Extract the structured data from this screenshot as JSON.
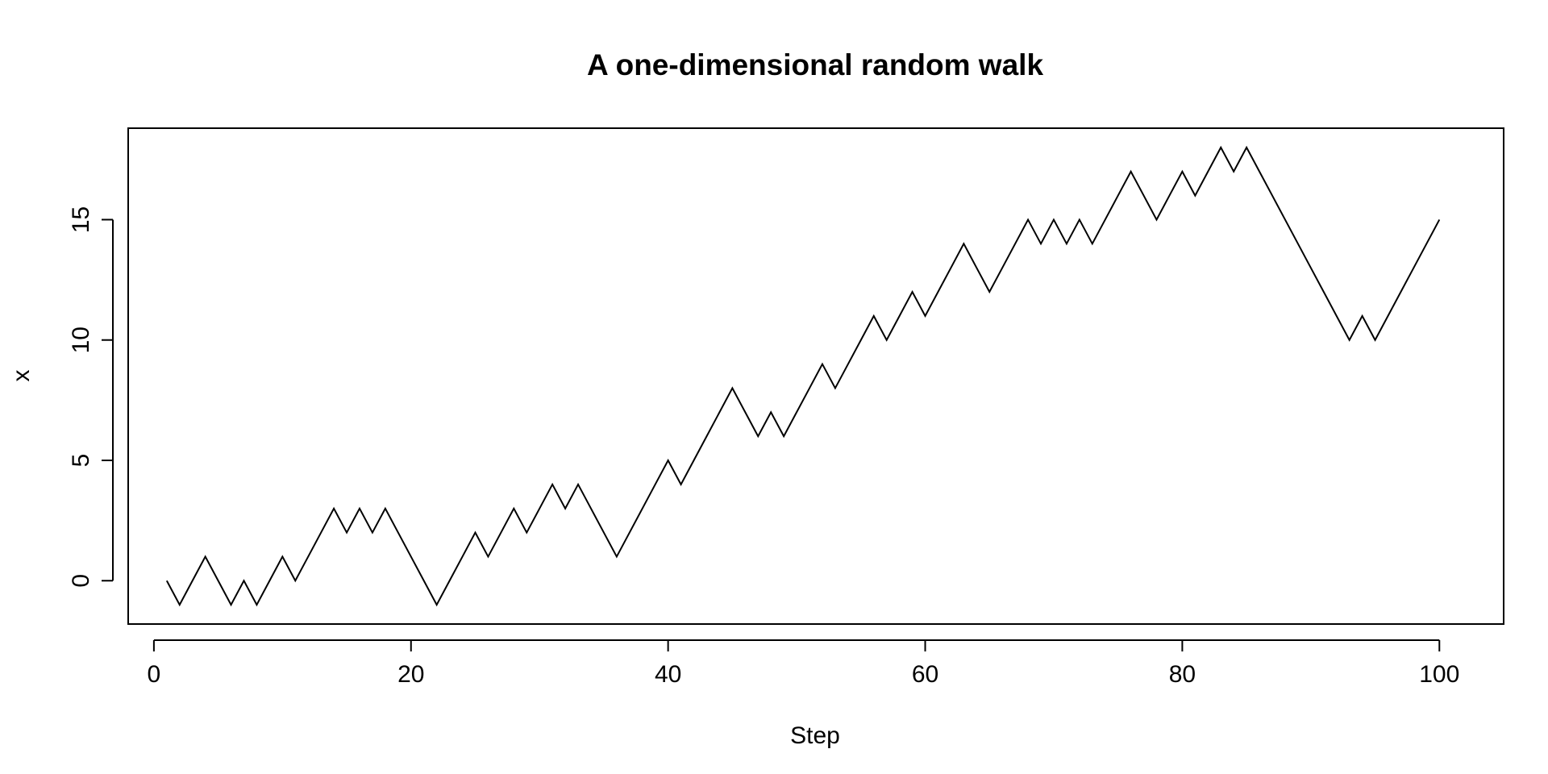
{
  "chart_data": {
    "type": "line",
    "title": "A one-dimensional random walk",
    "xlabel": "Step",
    "ylabel": "x",
    "xlim": [
      -2,
      105
    ],
    "ylim": [
      -1.8,
      18.8
    ],
    "xticks": [
      "0",
      "20",
      "40",
      "60",
      "80",
      "100"
    ],
    "yticks": [
      "0",
      "5",
      "10",
      "15"
    ],
    "grid": false,
    "legend": "none",
    "line_color": "#000000",
    "series": [
      {
        "x": [
          1,
          2,
          3,
          4,
          5,
          6,
          7,
          8,
          9,
          10,
          11,
          12,
          13,
          14,
          15,
          16,
          17,
          18,
          19,
          20,
          21,
          22,
          23,
          24,
          25,
          26,
          27,
          28,
          29,
          30,
          31,
          32,
          33,
          34,
          35,
          36,
          37,
          38,
          39,
          40,
          41,
          42,
          43,
          44,
          45,
          46,
          47,
          48,
          49,
          50,
          51,
          52,
          53,
          54,
          55,
          56,
          57,
          58,
          59,
          60,
          61,
          62,
          63,
          64,
          65,
          66,
          67,
          68,
          69,
          70,
          71,
          72,
          73,
          74,
          75,
          76,
          77,
          78,
          79,
          80,
          81,
          82,
          83,
          84,
          85,
          86,
          87,
          88,
          89,
          90,
          91,
          92,
          93,
          94,
          95,
          96,
          97,
          98,
          99,
          100
        ],
        "y": [
          0,
          -1,
          0,
          1,
          0,
          -1,
          0,
          -1,
          0,
          1,
          0,
          1,
          2,
          3,
          2,
          3,
          2,
          3,
          2,
          1,
          0,
          -1,
          0,
          1,
          2,
          1,
          2,
          3,
          2,
          3,
          4,
          3,
          4,
          3,
          2,
          1,
          2,
          3,
          4,
          5,
          4,
          5,
          6,
          7,
          8,
          7,
          6,
          7,
          6,
          7,
          8,
          9,
          8,
          9,
          10,
          11,
          10,
          11,
          12,
          11,
          12,
          13,
          14,
          13,
          12,
          13,
          14,
          15,
          14,
          15,
          14,
          15,
          14,
          15,
          16,
          17,
          16,
          15,
          16,
          17,
          16,
          17,
          18,
          17,
          18,
          17,
          16,
          15,
          14,
          13,
          12,
          11,
          10,
          11,
          10,
          11,
          12,
          13,
          14,
          15
        ]
      }
    ]
  }
}
